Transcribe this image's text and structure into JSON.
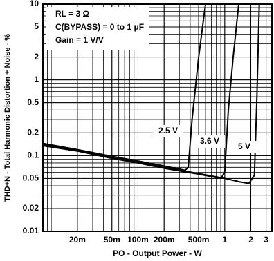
{
  "chart_data": {
    "type": "line",
    "xlabel": "PO - Output Power - W",
    "ylabel": "THD+N - Total Harmonic Distortion + Noise - %",
    "annotations": [
      "RL = 3 Ω",
      "C(BYPASS) = 0 to 1 μF",
      "Gain = 1 V/V"
    ],
    "xscale": "log",
    "yscale": "log",
    "grid": true,
    "xlim": [
      0.008,
      3.5
    ],
    "ylim": [
      0.01,
      10
    ],
    "xticks": [
      {
        "value": 0.02,
        "label": "20m"
      },
      {
        "value": 0.05,
        "label": "50m"
      },
      {
        "value": 0.1,
        "label": "100m"
      },
      {
        "value": 0.2,
        "label": "200m"
      },
      {
        "value": 0.5,
        "label": "500m"
      },
      1,
      2,
      3
    ],
    "yticks": [
      0.01,
      0.02,
      0.05,
      0.1,
      0.2,
      0.5,
      1,
      2,
      5,
      10
    ],
    "series": [
      {
        "name": "2.5 V",
        "color": "#000000",
        "x": [
          0.008,
          0.02,
          0.05,
          0.1,
          0.2,
          0.35,
          0.38,
          0.42,
          0.5,
          0.6
        ],
        "values": [
          0.145,
          0.12,
          0.098,
          0.085,
          0.073,
          0.064,
          0.07,
          0.3,
          2,
          10
        ]
      },
      {
        "name": "3.6 V",
        "color": "#000000",
        "x": [
          0.008,
          0.02,
          0.05,
          0.1,
          0.2,
          0.5,
          0.9,
          1.0,
          1.1,
          1.25,
          1.45
        ],
        "values": [
          0.135,
          0.115,
          0.092,
          0.08,
          0.068,
          0.057,
          0.05,
          0.06,
          0.4,
          2,
          10
        ]
      },
      {
        "name": "5 V",
        "color": "#000000",
        "x": [
          0.008,
          0.02,
          0.05,
          0.1,
          0.2,
          0.5,
          1,
          1.5,
          1.9,
          2.2,
          2.35,
          2.5
        ],
        "values": [
          0.14,
          0.118,
          0.094,
          0.082,
          0.07,
          0.058,
          0.05,
          0.045,
          0.043,
          0.055,
          0.6,
          10
        ]
      }
    ]
  }
}
